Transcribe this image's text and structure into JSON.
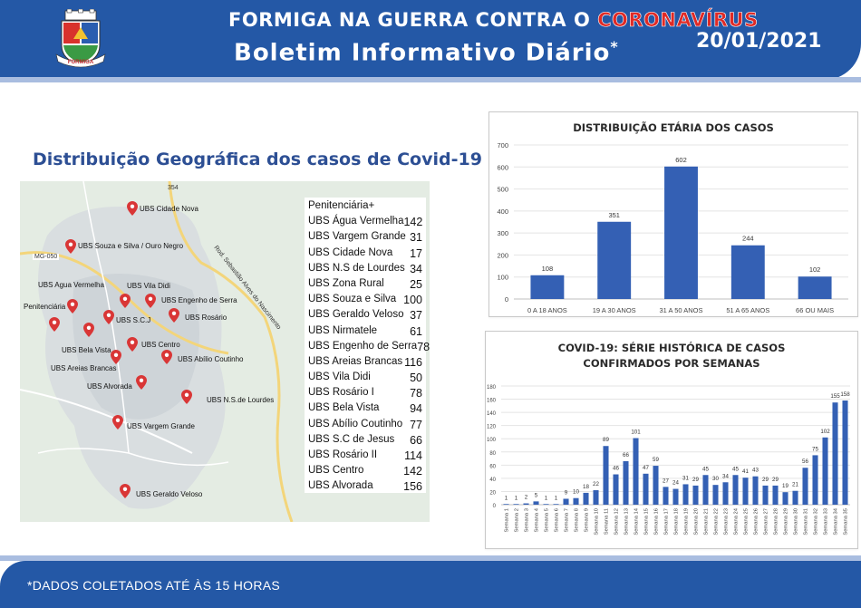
{
  "header": {
    "title_prefix": "FORMIGA NA GUERRA CONTRA O ",
    "title_highlight": "CORONAVÍRUS",
    "subtitle": "Boletim Informativo Diário",
    "subtitle_mark": "*",
    "date": "20/01/2021",
    "logo_text": "FORMIGA"
  },
  "geo": {
    "title": "Distribuição Geográfica dos casos de Covid-19",
    "road_labels": [
      "354",
      "MG-050",
      "Rod. Sebastião Alves do Nascimento"
    ],
    "pins": [
      "UBS Cidade Nova",
      "UBS Souza e Silva / Ouro Negro",
      "UBS Agua Vermelha",
      "UBS Vila Didi",
      "Penitenciária",
      "UBS Engenho de Serra",
      "UBS S.C.J",
      "UBS Rosário",
      "UBS Bela Vista",
      "UBS Centro",
      "UBS Areias Brancas",
      "UBS Abílio Coutinho",
      "UBS Alvorada",
      "UBS N.S.de Lourdes",
      "UBS Vargem Grande",
      "UBS Geraldo Veloso"
    ],
    "table": [
      {
        "name": "Penitenciária+",
        "value": ""
      },
      {
        "name": "UBS Água Vermelha",
        "value": "142"
      },
      {
        "name": "UBS Vargem Grande",
        "value": "31"
      },
      {
        "name": "UBS Cidade Nova",
        "value": "17"
      },
      {
        "name": "UBS N.S de Lourdes",
        "value": "34"
      },
      {
        "name": "UBS Zona Rural",
        "value": "25"
      },
      {
        "name": "UBS Souza e Silva",
        "value": "100"
      },
      {
        "name": "UBS Geraldo Veloso",
        "value": "37"
      },
      {
        "name": "UBS Nirmatele",
        "value": "61"
      },
      {
        "name": "UBS Engenho de Serra",
        "value": "78"
      },
      {
        "name": "UBS Areias Brancas",
        "value": "116"
      },
      {
        "name": "UBS Vila Didi",
        "value": "50"
      },
      {
        "name": "UBS Rosário I",
        "value": "78"
      },
      {
        "name": "UBS Bela Vista",
        "value": "94"
      },
      {
        "name": "UBS Abílio Coutinho",
        "value": "77"
      },
      {
        "name": "UBS S.C de Jesus",
        "value": "66"
      },
      {
        "name": "UBS Rosário II",
        "value": "114"
      },
      {
        "name": "UBS Centro",
        "value": "142"
      },
      {
        "name": "UBS Alvorada",
        "value": "156"
      }
    ]
  },
  "footer": {
    "note": "*DADOS COLETADOS ATÉ ÀS 15 HORAS"
  },
  "colors": {
    "header_blue": "#2458a6",
    "bar_blue": "#3460b4",
    "highlight_red": "#e02a26",
    "pin_red": "#d93636"
  },
  "chart_data": [
    {
      "type": "bar",
      "title": "DISTRIBUIÇÃO ETÁRIA DOS CASOS",
      "categories": [
        "0 A 18 ANOS",
        "19 A 30 ANOS",
        "31 A 50 ANOS",
        "51 A 65 ANOS",
        "66 OU MAIS"
      ],
      "values": [
        108,
        351,
        602,
        244,
        102
      ],
      "ylim": [
        0,
        700
      ],
      "yticks": [
        0,
        100,
        200,
        300,
        400,
        500,
        600,
        700
      ],
      "grid": true,
      "data_labels": true,
      "xlabel": "",
      "ylabel": ""
    },
    {
      "type": "bar",
      "title": "COVID-19: SÉRIE HISTÓRICA DE CASOS CONFIRMADOS POR SEMANAS",
      "categories": [
        "Semana 1",
        "Semana 2",
        "Semana 3",
        "Semana 4",
        "Semana 5",
        "Semana 6",
        "Semana 7",
        "Semana 8",
        "Semana 9",
        "Semana 10",
        "Semana 11",
        "Semana 12",
        "Semana 13",
        "Semana 14",
        "Semana 15",
        "Semana 16",
        "Semana 17",
        "Semana 18",
        "Semana 19",
        "Semana 20",
        "Semana 21",
        "Semana 22",
        "Semana 23",
        "Semana 24",
        "Semana 25",
        "Semana 26",
        "Semana 27",
        "Semana 28",
        "Semana 29",
        "Semana 30",
        "Semana 31",
        "Semana 32",
        "Semana 33",
        "Semana 34",
        "Semana 35"
      ],
      "values": [
        1,
        1,
        2,
        5,
        1,
        1,
        9,
        10,
        18,
        22,
        89,
        46,
        66,
        101,
        47,
        59,
        27,
        24,
        31,
        29,
        45,
        30,
        34,
        45,
        41,
        43,
        29,
        29,
        19,
        21,
        56,
        75,
        102,
        155,
        158
      ],
      "ylim": [
        0,
        180
      ],
      "yticks": [
        0,
        20,
        40,
        60,
        80,
        100,
        120,
        140,
        160,
        180
      ],
      "grid": true,
      "data_labels": true,
      "xlabel": "",
      "ylabel": ""
    }
  ]
}
